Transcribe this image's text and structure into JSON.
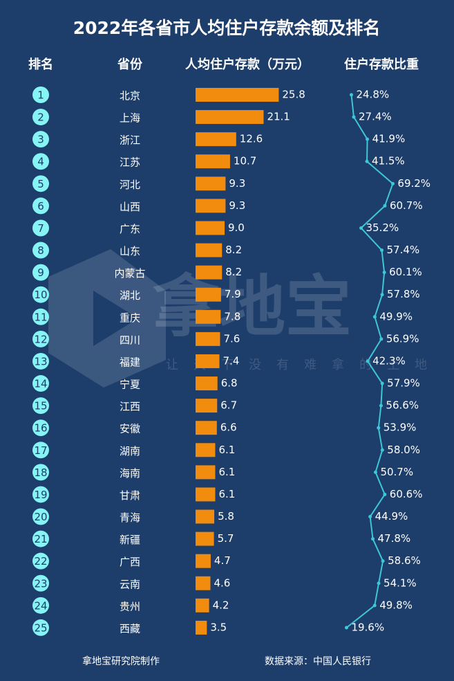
{
  "chart_data": {
    "type": "bar",
    "title": "2022年各省市人均住户存款余额及排名",
    "headers": [
      "排名",
      "省份"
    ],
    "ranks": [
      1,
      2,
      3,
      4,
      5,
      6,
      7,
      8,
      9,
      10,
      11,
      12,
      13,
      14,
      15,
      16,
      17,
      18,
      19,
      20,
      21,
      22,
      23,
      24,
      25
    ],
    "categories": [
      "北京",
      "上海",
      "浙江",
      "江苏",
      "河北",
      "山西",
      "广东",
      "山东",
      "内蒙古",
      "湖北",
      "重庆",
      "四川",
      "福建",
      "宁夏",
      "江西",
      "安徽",
      "湖南",
      "海南",
      "甘肃",
      "青海",
      "新疆",
      "广西",
      "云南",
      "贵州",
      "西藏"
    ],
    "xlim": [
      0,
      30
    ],
    "x2lim": [
      0,
      100
    ],
    "series": [
      {
        "name": "人均住户存款（万元）",
        "color": "#f28c0f",
        "values": [
          25.8,
          21.1,
          12.6,
          10.7,
          9.3,
          9.3,
          9.0,
          8.2,
          8.2,
          7.9,
          7.8,
          7.6,
          7.4,
          6.8,
          6.7,
          6.6,
          6.1,
          6.1,
          6.1,
          5.8,
          5.7,
          4.7,
          4.6,
          4.2,
          3.5
        ],
        "value_labels": [
          "25.8",
          "21.1",
          "12.6",
          "10.7",
          "9.3",
          "9.3",
          "9.0",
          "8.2",
          "8.2",
          "7.9",
          "7.8",
          "7.6",
          "7.4",
          "6.8",
          "6.7",
          "6.6",
          "6.1",
          "6.1",
          "6.1",
          "5.8",
          "5.7",
          "4.7",
          "4.6",
          "4.2",
          "3.5"
        ]
      },
      {
        "name": "住户存款比重",
        "color": "#3ec7d6",
        "type": "line",
        "axis": "x2",
        "values": [
          24.8,
          27.4,
          41.9,
          41.5,
          69.2,
          60.7,
          35.2,
          57.4,
          60.1,
          57.8,
          49.9,
          56.9,
          42.3,
          57.9,
          56.6,
          53.9,
          58.0,
          50.7,
          60.6,
          44.9,
          47.8,
          58.6,
          54.1,
          49.8,
          19.6
        ],
        "value_labels": [
          "24.8%",
          "27.4%",
          "41.9%",
          "41.5%",
          "69.2%",
          "60.7%",
          "35.2%",
          "57.4%",
          "60.1%",
          "57.8%",
          "49.9%",
          "56.9%",
          "42.3%",
          "57.9%",
          "56.6%",
          "53.9%",
          "58.0%",
          "50.7%",
          "60.6%",
          "44.9%",
          "47.8%",
          "58.6%",
          "54.1%",
          "49.8%",
          "19.6%"
        ]
      }
    ],
    "watermark": "拿地宝",
    "slogan": "让天下没有难拿的土地",
    "credit": "拿地宝研究院制作",
    "source": "数据来源：中国人民银行"
  }
}
